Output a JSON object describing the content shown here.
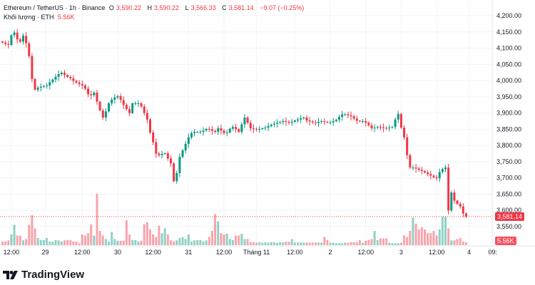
{
  "legend": {
    "symbol": "Ethereum / TetherUS · 1h · Binance",
    "open_label": "O",
    "open": "3,590.22",
    "high_label": "H",
    "high": "3,590.22",
    "low_label": "L",
    "low": "3,566.33",
    "close_label": "C",
    "close": "3,581.14",
    "change": "−9.07 (−0.25%)",
    "volume_label": "Khối lượng · ETH",
    "volume": "5.56K"
  },
  "price_tag": "3,581.14",
  "volume_tag": "5.56K",
  "logo_text": "TradingView",
  "colors": {
    "up": "#089981",
    "down": "#f23645"
  },
  "chart_data": {
    "type": "candlestick",
    "interval": "1h",
    "ylim": [
      3530,
      4250
    ],
    "y_ticks": [
      "4,200.00",
      "4,150.00",
      "4,100.00",
      "4,050.00",
      "4,000.00",
      "3,950.00",
      "3,900.00",
      "3,850.00",
      "3,800.00",
      "3,750.00",
      "3,700.00",
      "3,650.00",
      "3,600.00",
      "3,550.00"
    ],
    "y_tick_values": [
      4200,
      4150,
      4100,
      4050,
      4000,
      3950,
      3900,
      3850,
      3800,
      3750,
      3700,
      3650,
      3600,
      3550
    ],
    "x_ticks": [
      "12:00",
      "29",
      "12:00",
      "30",
      "12:00",
      "31",
      "12:00",
      "Tháng 11",
      "12:00",
      "2",
      "12:00",
      "3",
      "12:00",
      "4",
      "09:"
    ],
    "x_tick_candle_index": [
      3,
      14.5,
      27,
      39,
      51,
      63,
      75,
      86,
      99,
      111,
      123,
      135,
      147,
      158,
      166
    ],
    "closes": [
      4117,
      4113,
      4110,
      4140,
      4148,
      4127,
      4120,
      4138,
      4115,
      4075,
      4005,
      3972,
      3978,
      3981,
      3983,
      3985,
      3995,
      4003,
      4012,
      4020,
      4024,
      4017,
      4011,
      4007,
      3999,
      3994,
      3989,
      3985,
      3975,
      3958,
      3955,
      3963,
      3935,
      3908,
      3886,
      3905,
      3930,
      3941,
      3948,
      3952,
      3940,
      3925,
      3912,
      3900,
      3930,
      3930,
      3930,
      3920,
      3900,
      3880,
      3840,
      3810,
      3775,
      3770,
      3774,
      3776,
      3760,
      3745,
      3690,
      3715,
      3765,
      3785,
      3805,
      3825,
      3838,
      3842,
      3842,
      3842,
      3846,
      3851,
      3850,
      3845,
      3842,
      3853,
      3846,
      3838,
      3840,
      3852,
      3857,
      3850,
      3842,
      3865,
      3886,
      3870,
      3853,
      3851,
      3849,
      3851,
      3853,
      3855,
      3860,
      3864,
      3867,
      3870,
      3872,
      3875,
      3873,
      3870,
      3873,
      3877,
      3880,
      3884,
      3886,
      3877,
      3874,
      3871,
      3870,
      3873,
      3875,
      3873,
      3871,
      3871,
      3875,
      3879,
      3888,
      3896,
      3896,
      3893,
      3890,
      3883,
      3876,
      3875,
      3875,
      3870,
      3862,
      3853,
      3855,
      3857,
      3856,
      3854,
      3853,
      3855,
      3857,
      3880,
      3897,
      3855,
      3825,
      3770,
      3732,
      3732,
      3729,
      3725,
      3721,
      3717,
      3712,
      3707,
      3702,
      3699,
      3718,
      3727,
      3732,
      3600,
      3655,
      3630,
      3620,
      3612,
      3590.22,
      3581.14
    ],
    "volumes_k": [
      7,
      7,
      9.4,
      21,
      40,
      19,
      19,
      9.4,
      12,
      40,
      59,
      33,
      14,
      10,
      10,
      14,
      7,
      7,
      10,
      9.4,
      7,
      9.4,
      10,
      10,
      7,
      7,
      3.8,
      21,
      19,
      23.5,
      41,
      19,
      101,
      28,
      19,
      12,
      7,
      26,
      12,
      8.5,
      8.5,
      8.5,
      49,
      21,
      10,
      10,
      7,
      8.5,
      41,
      45,
      31,
      21,
      16,
      38,
      23.5,
      33,
      21,
      9.4,
      7,
      9.4,
      14,
      16,
      12,
      21,
      7,
      9.4,
      10,
      10,
      7,
      9.4,
      16,
      28,
      61,
      47,
      23.5,
      21,
      22.5,
      12,
      10,
      19,
      19,
      22.5,
      12,
      12,
      5.6,
      5.6,
      4.7,
      5.6,
      4.7,
      5.6,
      4.7,
      5.6,
      5.6,
      4.7,
      5.6,
      5.6,
      6.6,
      6.6,
      12,
      5,
      5,
      5,
      5,
      5,
      5,
      5,
      5,
      5,
      5,
      16,
      10,
      4.7,
      4.7,
      3.8,
      3.8,
      3.8,
      4.7,
      4.7,
      5.6,
      5.6,
      5.6,
      10,
      4.7,
      8.5,
      10,
      12,
      28,
      10,
      13,
      13,
      13,
      4.7,
      3.8,
      3.8,
      3.8,
      4.7,
      19,
      16,
      28,
      54,
      42,
      31,
      35,
      31,
      23.5,
      23.5,
      28,
      19,
      31,
      56,
      56,
      33,
      9.4,
      9.4,
      12,
      14,
      7,
      5.56
    ]
  }
}
